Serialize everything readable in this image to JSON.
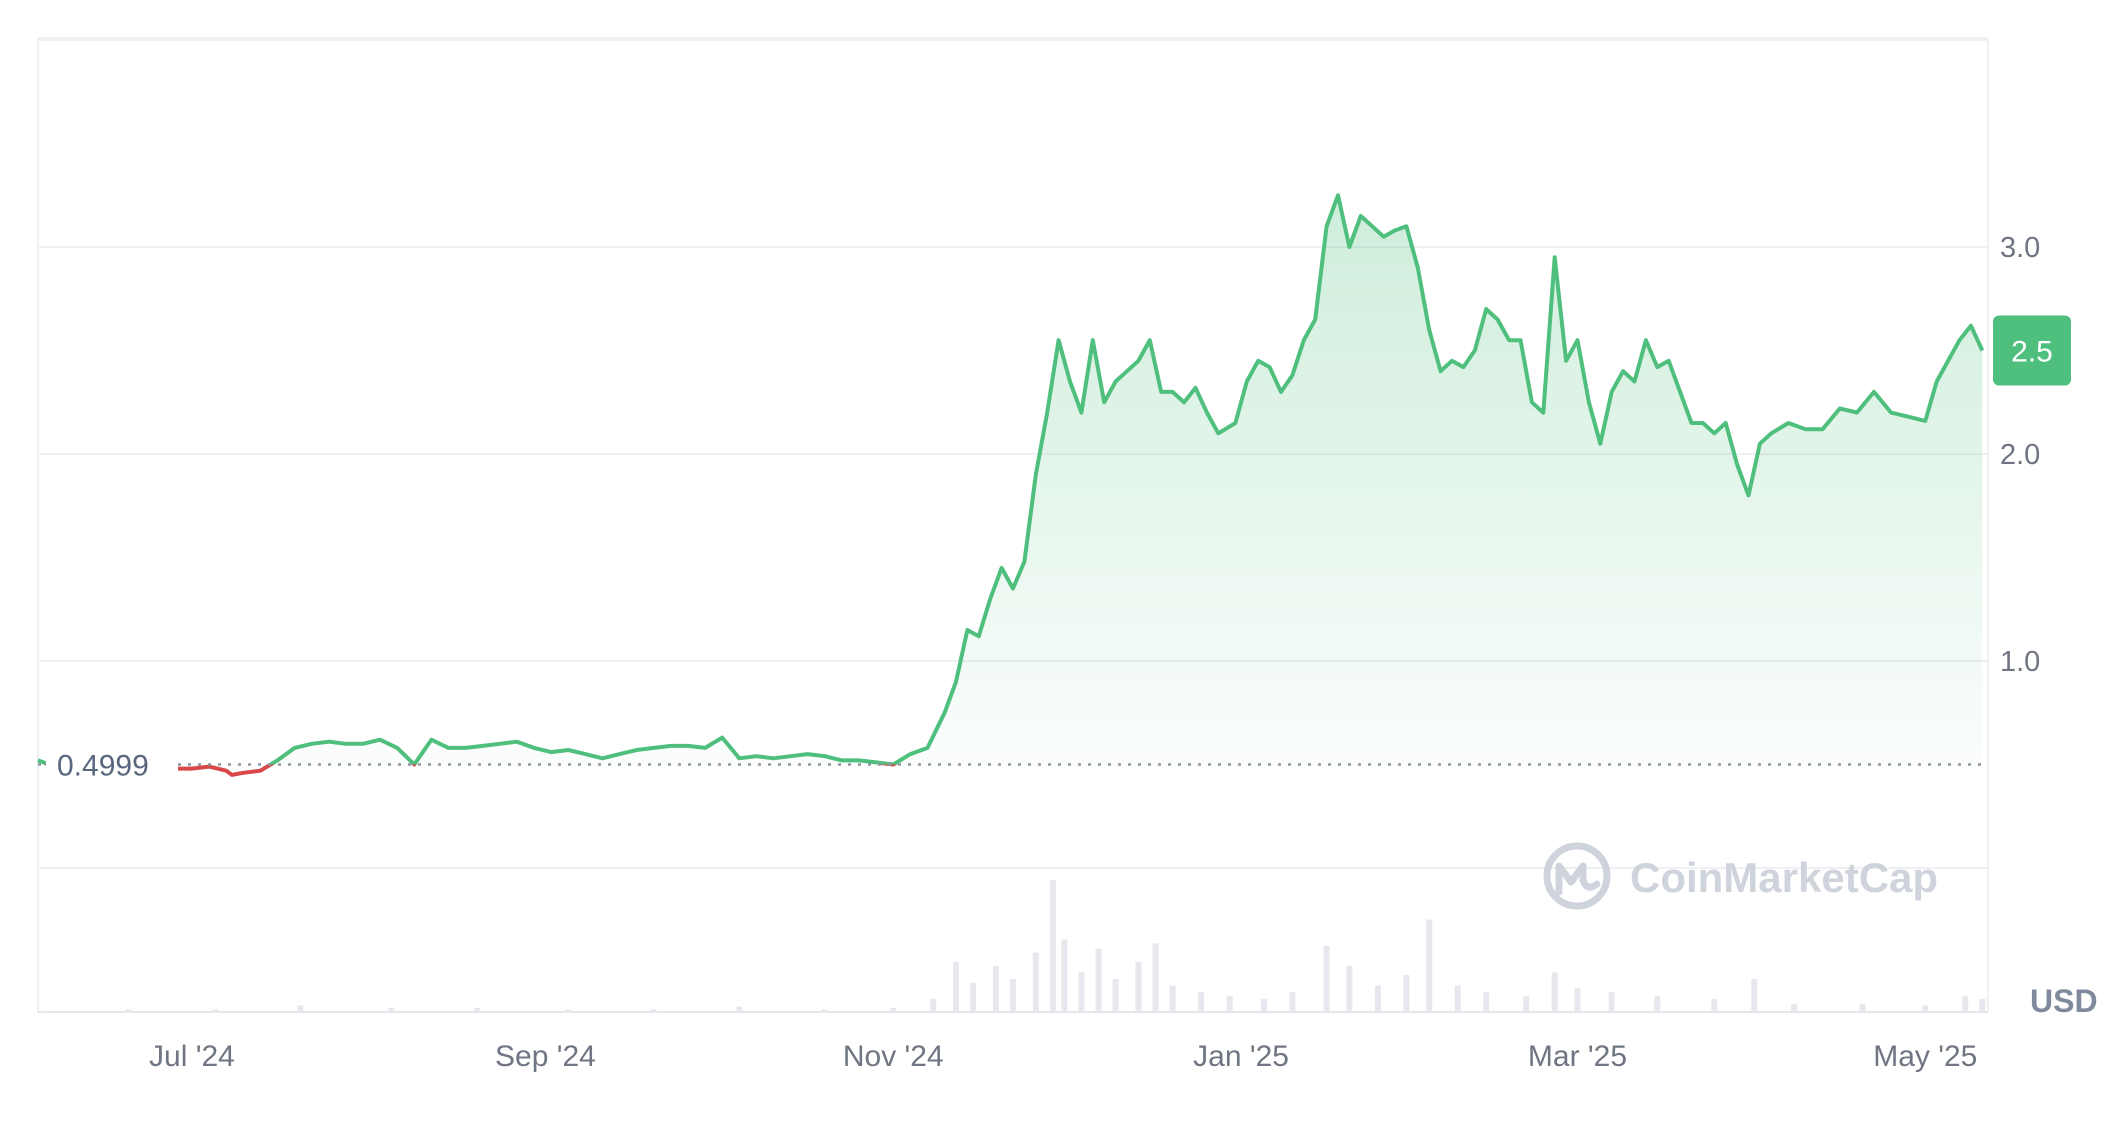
{
  "chart_data": {
    "type": "area",
    "series": [
      {
        "values": [
          [
            "2024-06-04",
            0.52
          ],
          [
            "2024-06-07",
            0.49
          ],
          [
            "2024-06-10",
            0.5
          ],
          [
            "2024-06-13",
            0.49
          ],
          [
            "2024-06-16",
            0.5
          ],
          [
            "2024-06-19",
            0.49
          ],
          [
            "2024-06-22",
            0.49
          ],
          [
            "2024-06-25",
            0.49
          ],
          [
            "2024-06-28",
            0.48
          ],
          [
            "2024-07-01",
            0.48
          ],
          [
            "2024-07-04",
            0.49
          ],
          [
            "2024-07-07",
            0.47
          ],
          [
            "2024-07-08",
            0.45
          ],
          [
            "2024-07-10",
            0.46
          ],
          [
            "2024-07-13",
            0.47
          ],
          [
            "2024-07-16",
            0.52
          ],
          [
            "2024-07-19",
            0.58
          ],
          [
            "2024-07-22",
            0.6
          ],
          [
            "2024-07-25",
            0.61
          ],
          [
            "2024-07-28",
            0.6
          ],
          [
            "2024-07-31",
            0.6
          ],
          [
            "2024-08-03",
            0.62
          ],
          [
            "2024-08-06",
            0.58
          ],
          [
            "2024-08-09",
            0.5
          ],
          [
            "2024-08-12",
            0.62
          ],
          [
            "2024-08-15",
            0.58
          ],
          [
            "2024-08-18",
            0.58
          ],
          [
            "2024-08-21",
            0.59
          ],
          [
            "2024-08-24",
            0.6
          ],
          [
            "2024-08-27",
            0.61
          ],
          [
            "2024-08-30",
            0.58
          ],
          [
            "2024-09-02",
            0.56
          ],
          [
            "2024-09-05",
            0.57
          ],
          [
            "2024-09-08",
            0.55
          ],
          [
            "2024-09-11",
            0.53
          ],
          [
            "2024-09-14",
            0.55
          ],
          [
            "2024-09-17",
            0.57
          ],
          [
            "2024-09-20",
            0.58
          ],
          [
            "2024-09-23",
            0.59
          ],
          [
            "2024-09-26",
            0.59
          ],
          [
            "2024-09-29",
            0.58
          ],
          [
            "2024-10-02",
            0.63
          ],
          [
            "2024-10-05",
            0.53
          ],
          [
            "2024-10-08",
            0.54
          ],
          [
            "2024-10-11",
            0.53
          ],
          [
            "2024-10-14",
            0.54
          ],
          [
            "2024-10-17",
            0.55
          ],
          [
            "2024-10-20",
            0.54
          ],
          [
            "2024-10-23",
            0.52
          ],
          [
            "2024-10-26",
            0.52
          ],
          [
            "2024-10-29",
            0.51
          ],
          [
            "2024-11-01",
            0.5
          ],
          [
            "2024-11-04",
            0.55
          ],
          [
            "2024-11-07",
            0.58
          ],
          [
            "2024-11-10",
            0.75
          ],
          [
            "2024-11-12",
            0.9
          ],
          [
            "2024-11-14",
            1.15
          ],
          [
            "2024-11-16",
            1.12
          ],
          [
            "2024-11-18",
            1.3
          ],
          [
            "2024-11-20",
            1.45
          ],
          [
            "2024-11-22",
            1.35
          ],
          [
            "2024-11-24",
            1.48
          ],
          [
            "2024-11-26",
            1.9
          ],
          [
            "2024-11-28",
            2.2
          ],
          [
            "2024-11-30",
            2.55
          ],
          [
            "2024-12-02",
            2.35
          ],
          [
            "2024-12-04",
            2.2
          ],
          [
            "2024-12-06",
            2.55
          ],
          [
            "2024-12-08",
            2.25
          ],
          [
            "2024-12-10",
            2.35
          ],
          [
            "2024-12-12",
            2.4
          ],
          [
            "2024-12-14",
            2.45
          ],
          [
            "2024-12-16",
            2.55
          ],
          [
            "2024-12-18",
            2.3
          ],
          [
            "2024-12-20",
            2.3
          ],
          [
            "2024-12-22",
            2.25
          ],
          [
            "2024-12-24",
            2.32
          ],
          [
            "2024-12-26",
            2.2
          ],
          [
            "2024-12-28",
            2.1
          ],
          [
            "2024-12-31",
            2.15
          ],
          [
            "2025-01-02",
            2.35
          ],
          [
            "2025-01-04",
            2.45
          ],
          [
            "2025-01-06",
            2.42
          ],
          [
            "2025-01-08",
            2.3
          ],
          [
            "2025-01-10",
            2.38
          ],
          [
            "2025-01-12",
            2.55
          ],
          [
            "2025-01-14",
            2.65
          ],
          [
            "2025-01-16",
            3.1
          ],
          [
            "2025-01-18",
            3.25
          ],
          [
            "2025-01-20",
            3.0
          ],
          [
            "2025-01-22",
            3.15
          ],
          [
            "2025-01-24",
            3.1
          ],
          [
            "2025-01-26",
            3.05
          ],
          [
            "2025-01-28",
            3.08
          ],
          [
            "2025-01-30",
            3.1
          ],
          [
            "2025-02-01",
            2.9
          ],
          [
            "2025-02-03",
            2.6
          ],
          [
            "2025-02-05",
            2.4
          ],
          [
            "2025-02-07",
            2.45
          ],
          [
            "2025-02-09",
            2.42
          ],
          [
            "2025-02-11",
            2.5
          ],
          [
            "2025-02-13",
            2.7
          ],
          [
            "2025-02-15",
            2.65
          ],
          [
            "2025-02-17",
            2.55
          ],
          [
            "2025-02-19",
            2.55
          ],
          [
            "2025-02-21",
            2.25
          ],
          [
            "2025-02-23",
            2.2
          ],
          [
            "2025-02-25",
            2.95
          ],
          [
            "2025-02-27",
            2.45
          ],
          [
            "2025-03-01",
            2.55
          ],
          [
            "2025-03-03",
            2.25
          ],
          [
            "2025-03-05",
            2.05
          ],
          [
            "2025-03-07",
            2.3
          ],
          [
            "2025-03-09",
            2.4
          ],
          [
            "2025-03-11",
            2.35
          ],
          [
            "2025-03-13",
            2.55
          ],
          [
            "2025-03-15",
            2.42
          ],
          [
            "2025-03-17",
            2.45
          ],
          [
            "2025-03-19",
            2.3
          ],
          [
            "2025-03-21",
            2.15
          ],
          [
            "2025-03-23",
            2.15
          ],
          [
            "2025-03-25",
            2.1
          ],
          [
            "2025-03-27",
            2.15
          ],
          [
            "2025-03-29",
            1.95
          ],
          [
            "2025-03-31",
            1.8
          ],
          [
            "2025-04-02",
            2.05
          ],
          [
            "2025-04-04",
            2.1
          ],
          [
            "2025-04-07",
            2.15
          ],
          [
            "2025-04-10",
            2.12
          ],
          [
            "2025-04-13",
            2.12
          ],
          [
            "2025-04-16",
            2.22
          ],
          [
            "2025-04-19",
            2.2
          ],
          [
            "2025-04-22",
            2.3
          ],
          [
            "2025-04-25",
            2.2
          ],
          [
            "2025-04-28",
            2.18
          ],
          [
            "2025-05-01",
            2.16
          ],
          [
            "2025-05-03",
            2.35
          ],
          [
            "2025-05-05",
            2.45
          ],
          [
            "2025-05-07",
            2.55
          ],
          [
            "2025-05-09",
            2.62
          ],
          [
            "2025-05-11",
            2.5
          ]
        ]
      }
    ],
    "volume": [
      [
        "2024-06-05",
        0.01
      ],
      [
        "2024-06-20",
        0.02
      ],
      [
        "2024-07-05",
        0.02
      ],
      [
        "2024-07-20",
        0.05
      ],
      [
        "2024-08-05",
        0.03
      ],
      [
        "2024-08-20",
        0.03
      ],
      [
        "2024-09-05",
        0.02
      ],
      [
        "2024-09-20",
        0.02
      ],
      [
        "2024-10-05",
        0.04
      ],
      [
        "2024-10-20",
        0.02
      ],
      [
        "2024-11-01",
        0.03
      ],
      [
        "2024-11-08",
        0.1
      ],
      [
        "2024-11-12",
        0.38
      ],
      [
        "2024-11-15",
        0.22
      ],
      [
        "2024-11-19",
        0.35
      ],
      [
        "2024-11-22",
        0.25
      ],
      [
        "2024-11-26",
        0.45
      ],
      [
        "2024-11-29",
        1.0
      ],
      [
        "2024-12-01",
        0.55
      ],
      [
        "2024-12-04",
        0.3
      ],
      [
        "2024-12-07",
        0.48
      ],
      [
        "2024-12-10",
        0.25
      ],
      [
        "2024-12-14",
        0.38
      ],
      [
        "2024-12-17",
        0.52
      ],
      [
        "2024-12-20",
        0.2
      ],
      [
        "2024-12-25",
        0.15
      ],
      [
        "2024-12-30",
        0.12
      ],
      [
        "2025-01-05",
        0.1
      ],
      [
        "2025-01-10",
        0.15
      ],
      [
        "2025-01-16",
        0.5
      ],
      [
        "2025-01-20",
        0.35
      ],
      [
        "2025-01-25",
        0.2
      ],
      [
        "2025-01-30",
        0.28
      ],
      [
        "2025-02-03",
        0.7
      ],
      [
        "2025-02-08",
        0.2
      ],
      [
        "2025-02-13",
        0.15
      ],
      [
        "2025-02-20",
        0.12
      ],
      [
        "2025-02-25",
        0.3
      ],
      [
        "2025-03-01",
        0.18
      ],
      [
        "2025-03-07",
        0.15
      ],
      [
        "2025-03-15",
        0.12
      ],
      [
        "2025-03-25",
        0.1
      ],
      [
        "2025-04-01",
        0.25
      ],
      [
        "2025-04-08",
        0.06
      ],
      [
        "2025-04-20",
        0.06
      ],
      [
        "2025-05-01",
        0.05
      ],
      [
        "2025-05-08",
        0.12
      ],
      [
        "2025-05-11",
        0.1
      ]
    ],
    "reference_value": 0.4999,
    "reference_label": "0.4999",
    "current_value": 2.5,
    "current_label": "2.5",
    "yticks": [
      {
        "value": 1.0,
        "label": "1.0"
      },
      {
        "value": 2.0,
        "label": "2.0"
      },
      {
        "value": 3.0,
        "label": "3.0"
      }
    ],
    "xticks": [
      {
        "date": "2024-07-01",
        "label": "Jul '24"
      },
      {
        "date": "2024-09-01",
        "label": "Sep '24"
      },
      {
        "date": "2024-11-01",
        "label": "Nov '24"
      },
      {
        "date": "2025-01-01",
        "label": "Jan '25"
      },
      {
        "date": "2025-03-01",
        "label": "Mar '25"
      },
      {
        "date": "2025-05-01",
        "label": "May '25"
      }
    ],
    "ylim": [
      0,
      3.6
    ],
    "xlim": [
      "2024-06-04",
      "2025-05-12"
    ],
    "unit": "USD",
    "grid": true,
    "colors": {
      "up": "#4fbf7d",
      "down": "#d94848",
      "grid": "#eef0f3",
      "volume": "#e6e8ee"
    }
  },
  "watermark": {
    "text": "CoinMarketCap"
  }
}
